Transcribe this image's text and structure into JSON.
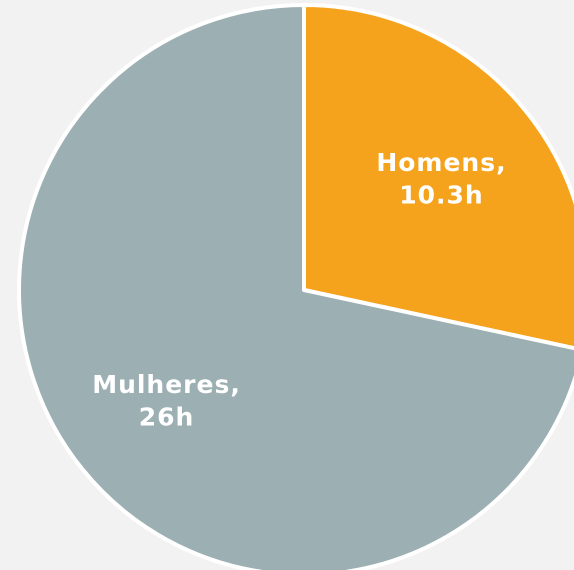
{
  "chart_data": {
    "type": "pie",
    "categories": [
      "Homens,",
      "Mulheres,"
    ],
    "values": [
      10.3,
      26
    ],
    "value_labels": [
      "10.3h",
      "26h"
    ],
    "colors": [
      "#f5a31d",
      "#9cafb3"
    ]
  }
}
